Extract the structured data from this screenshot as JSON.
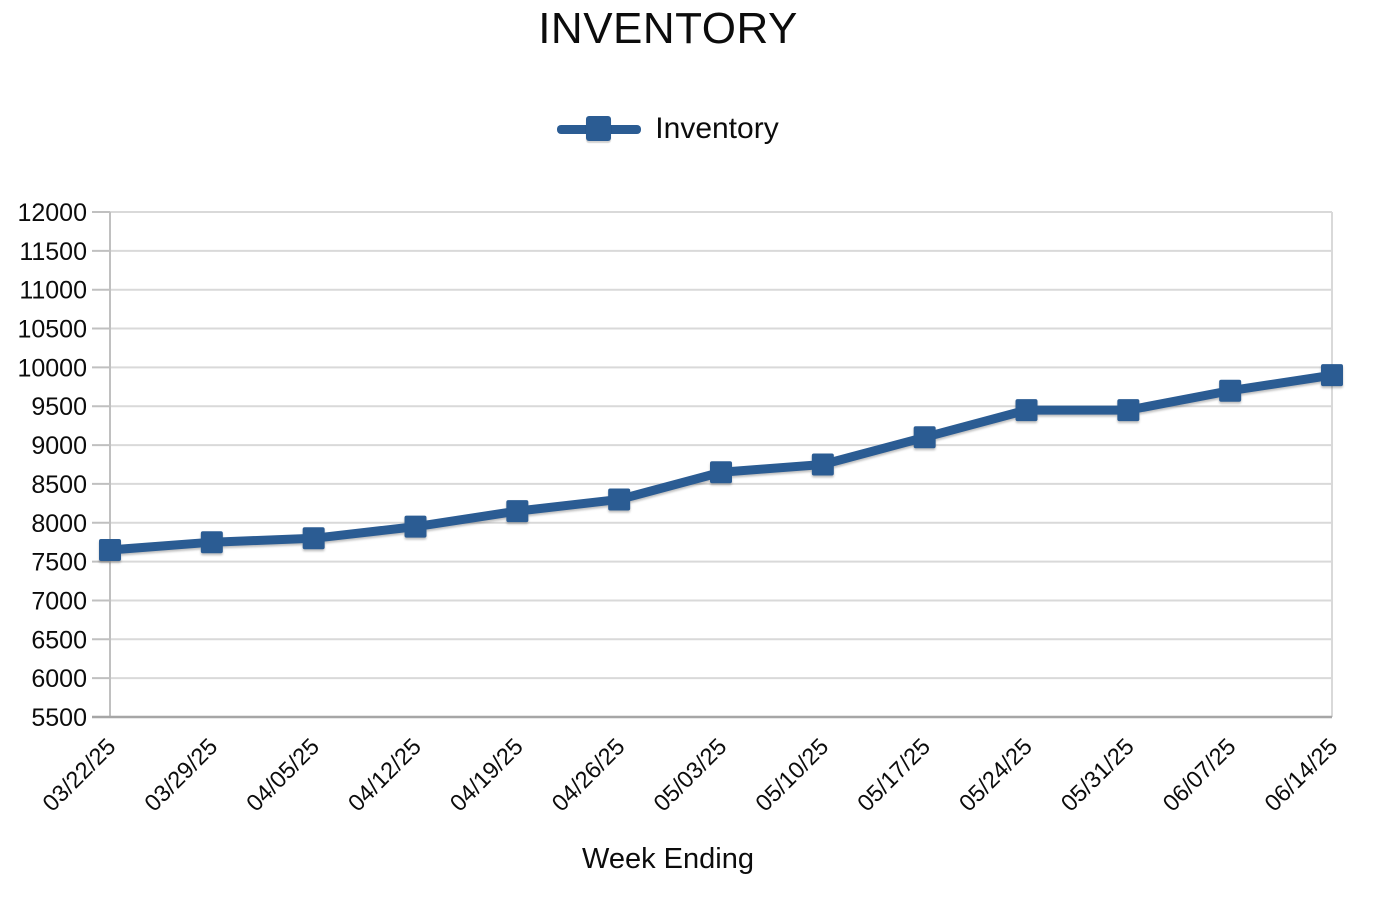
{
  "chart_data": {
    "type": "line",
    "title": "INVENTORY",
    "xlabel": "Week Ending",
    "ylabel": "",
    "x": [
      "03/22/25",
      "03/29/25",
      "04/05/25",
      "04/12/25",
      "04/19/25",
      "04/26/25",
      "05/03/25",
      "05/10/25",
      "05/17/25",
      "05/24/25",
      "05/31/25",
      "06/07/25",
      "06/14/25"
    ],
    "series": [
      {
        "name": "Inventory",
        "values": [
          7650,
          7750,
          7800,
          7950,
          8150,
          8300,
          8650,
          8750,
          9100,
          9450,
          9450,
          9700,
          9900
        ]
      }
    ],
    "ylim": [
      5500,
      12000
    ],
    "ytick_step": 500,
    "grid": true,
    "legend_position": "top-center",
    "marker": "square",
    "colors": {
      "line": "#2b5c93",
      "grid": "#d9d9d9",
      "axis": "#c0c0c0",
      "baseline": "#a6a6a6",
      "text": "#0c0c0c"
    }
  }
}
